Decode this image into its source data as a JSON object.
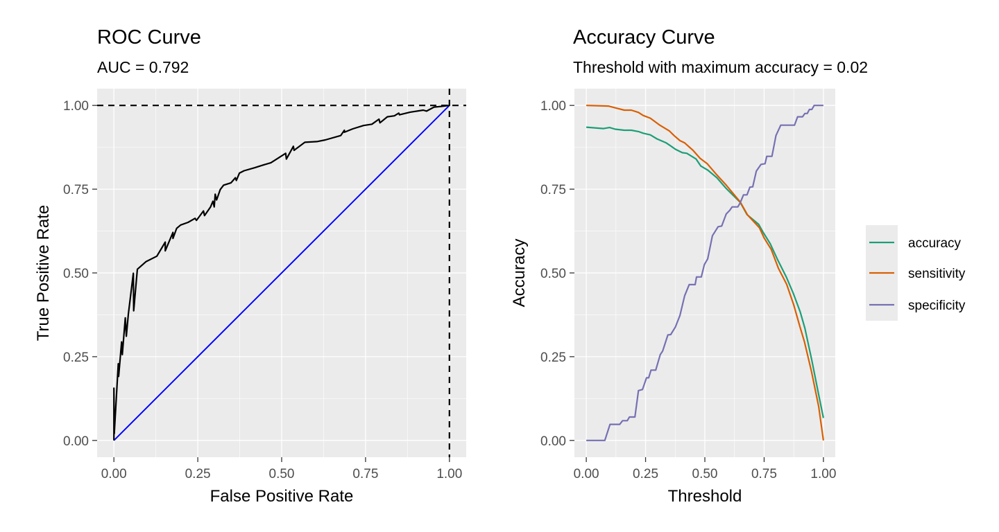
{
  "chart_data": [
    {
      "type": "line",
      "title": "ROC Curve",
      "subtitle": "AUC = 0.792",
      "xlabel": "False Positive Rate",
      "ylabel": "True Positive Rate",
      "xlim": [
        -0.05,
        1.05
      ],
      "ylim": [
        -0.05,
        1.05
      ],
      "xticks": [
        "0.00",
        "0.25",
        "0.50",
        "0.75",
        "1.00"
      ],
      "yticks": [
        "0.00",
        "0.25",
        "0.50",
        "0.75",
        "1.00"
      ],
      "grid": true,
      "colors": {
        "roc": "#000000",
        "diagonal": "#0000FF",
        "reference": "#000000",
        "panel": "#EBEBEB"
      },
      "reference_lines": {
        "hline_y": 1,
        "vline_x": 1,
        "style": "dashed"
      },
      "diagonal": {
        "x": [
          0,
          1
        ],
        "y": [
          0,
          1
        ]
      },
      "series": [
        {
          "x": [
            0,
            0,
            0.001,
            0.013,
            0.014,
            0.023,
            0.025,
            0.034,
            0.037,
            0.043,
            0.058,
            0.059,
            0.07,
            0.096,
            0.128,
            0.153,
            0.153,
            0.176,
            0.176,
            0.187,
            0.199,
            0.221,
            0.242,
            0.246,
            0.267,
            0.27,
            0.288,
            0.295,
            0.299,
            0.302,
            0.306,
            0.317,
            0.327,
            0.349,
            0.362,
            0.365,
            0.374,
            0.388,
            0.42,
            0.441,
            0.468,
            0.512,
            0.514,
            0.535,
            0.537,
            0.569,
            0.605,
            0.63,
            0.676,
            0.687,
            0.687,
            0.712,
            0.744,
            0.769,
            0.79,
            0.793,
            0.815,
            0.836,
            0.849,
            0.851,
            0.883,
            0.922,
            0.932,
            0.954,
            0.975,
            1.0
          ],
          "y": [
            0,
            0.156,
            0.02,
            0.229,
            0.191,
            0.294,
            0.256,
            0.366,
            0.311,
            0.377,
            0.499,
            0.387,
            0.511,
            0.534,
            0.55,
            0.592,
            0.566,
            0.621,
            0.603,
            0.633,
            0.643,
            0.651,
            0.663,
            0.657,
            0.685,
            0.671,
            0.697,
            0.714,
            0.697,
            0.735,
            0.718,
            0.749,
            0.762,
            0.769,
            0.784,
            0.776,
            0.798,
            0.805,
            0.814,
            0.821,
            0.829,
            0.857,
            0.84,
            0.878,
            0.866,
            0.89,
            0.892,
            0.897,
            0.91,
            0.926,
            0.92,
            0.93,
            0.94,
            0.944,
            0.959,
            0.948,
            0.966,
            0.969,
            0.977,
            0.972,
            0.98,
            0.986,
            0.983,
            0.995,
            0.997,
            1.0
          ]
        }
      ]
    },
    {
      "type": "line",
      "title": "Accuracy Curve",
      "subtitle": "Threshold with maximum accuracy = 0.02",
      "xlabel": "Threshold",
      "ylabel": "Accuracy",
      "xlim": [
        -0.05,
        1.05
      ],
      "ylim": [
        -0.05,
        1.05
      ],
      "xticks": [
        "0.00",
        "0.25",
        "0.50",
        "0.75",
        "1.00"
      ],
      "yticks": [
        "0.00",
        "0.25",
        "0.50",
        "0.75",
        "1.00"
      ],
      "grid": true,
      "legend": "right",
      "series": [
        {
          "name": "accuracy",
          "color": "#1B9E77",
          "x": [
            0,
            0.073,
            0.098,
            0.122,
            0.16,
            0.19,
            0.22,
            0.24,
            0.27,
            0.298,
            0.337,
            0.356,
            0.376,
            0.405,
            0.424,
            0.463,
            0.483,
            0.512,
            0.551,
            0.59,
            0.649,
            0.678,
            0.727,
            0.746,
            0.776,
            0.805,
            0.844,
            0.873,
            0.902,
            0.922,
            0.951,
            0.98,
            1.0
          ],
          "y": [
            0.935,
            0.931,
            0.934,
            0.929,
            0.926,
            0.926,
            0.922,
            0.917,
            0.912,
            0.9,
            0.888,
            0.879,
            0.869,
            0.859,
            0.857,
            0.84,
            0.819,
            0.807,
            0.784,
            0.752,
            0.711,
            0.674,
            0.645,
            0.621,
            0.587,
            0.542,
            0.487,
            0.439,
            0.384,
            0.335,
            0.239,
            0.136,
            0.067
          ]
        },
        {
          "name": "sensitivity",
          "color": "#D95F02",
          "x": [
            0,
            0.093,
            0.16,
            0.19,
            0.22,
            0.24,
            0.27,
            0.31,
            0.35,
            0.37,
            0.395,
            0.415,
            0.45,
            0.48,
            0.51,
            0.55,
            0.59,
            0.65,
            0.68,
            0.73,
            0.75,
            0.78,
            0.81,
            0.845,
            0.875,
            0.9,
            0.92,
            0.95,
            0.98,
            1.0
          ],
          "y": [
            1.0,
            0.998,
            0.986,
            0.986,
            0.979,
            0.97,
            0.962,
            0.941,
            0.924,
            0.91,
            0.895,
            0.888,
            0.866,
            0.842,
            0.826,
            0.793,
            0.762,
            0.711,
            0.673,
            0.635,
            0.604,
            0.57,
            0.514,
            0.466,
            0.404,
            0.342,
            0.294,
            0.205,
            0.101,
            0.0
          ]
        },
        {
          "name": "specificity",
          "color": "#7570B3",
          "x": [
            0,
            0.078,
            0.1,
            0.141,
            0.153,
            0.173,
            0.182,
            0.205,
            0.22,
            0.237,
            0.254,
            0.263,
            0.273,
            0.293,
            0.312,
            0.322,
            0.344,
            0.356,
            0.376,
            0.395,
            0.415,
            0.434,
            0.459,
            0.465,
            0.485,
            0.498,
            0.512,
            0.532,
            0.556,
            0.571,
            0.59,
            0.605,
            0.615,
            0.639,
            0.649,
            0.663,
            0.678,
            0.69,
            0.702,
            0.717,
            0.737,
            0.754,
            0.761,
            0.783,
            0.8,
            0.82,
            0.878,
            0.891,
            0.912,
            0.922,
            0.932,
            0.941,
            0.951,
            0.961,
            1.0
          ],
          "y": [
            0,
            0,
            0.048,
            0.048,
            0.059,
            0.059,
            0.07,
            0.07,
            0.149,
            0.152,
            0.187,
            0.187,
            0.21,
            0.21,
            0.256,
            0.267,
            0.315,
            0.316,
            0.339,
            0.373,
            0.432,
            0.465,
            0.465,
            0.488,
            0.488,
            0.525,
            0.542,
            0.611,
            0.638,
            0.64,
            0.676,
            0.687,
            0.697,
            0.697,
            0.709,
            0.733,
            0.733,
            0.756,
            0.757,
            0.804,
            0.824,
            0.826,
            0.848,
            0.848,
            0.91,
            0.941,
            0.941,
            0.966,
            0.966,
            0.976,
            0.976,
            0.988,
            0.988,
            1.0,
            1.0
          ]
        }
      ]
    }
  ]
}
